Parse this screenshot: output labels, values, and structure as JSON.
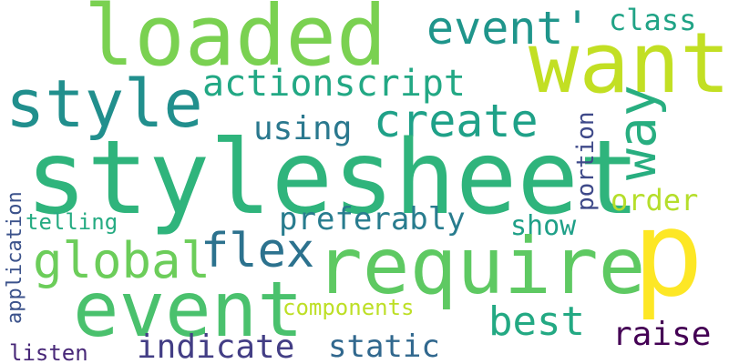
{
  "words": {
    "stylesheet": {
      "text": "stylesheet",
      "color": "#2fb47c"
    },
    "require": {
      "text": "require",
      "color": "#5ec962"
    },
    "event": {
      "text": "event",
      "color": "#4ac16d"
    },
    "loaded": {
      "text": "loaded",
      "color": "#7ad151"
    },
    "want": {
      "text": "want",
      "color": "#c2df23"
    },
    "p": {
      "text": "p",
      "color": "#fde725"
    },
    "style": {
      "text": "style",
      "color": "#218f8d"
    },
    "event_q": {
      "text": "event'",
      "color": "#1f958b"
    },
    "class": {
      "text": "class",
      "color": "#20a386"
    },
    "actionscript": {
      "text": "actionscript",
      "color": "#22a884"
    },
    "create": {
      "text": "create",
      "color": "#1fa188"
    },
    "way": {
      "text": "way",
      "color": "#28ae80"
    },
    "using": {
      "text": "using",
      "color": "#2a788e"
    },
    "portion": {
      "text": "portion",
      "color": "#3e4989"
    },
    "order": {
      "text": "order",
      "color": "#b5de2b"
    },
    "global": {
      "text": "global",
      "color": "#6ccd5a"
    },
    "flex": {
      "text": "flex",
      "color": "#2c728e"
    },
    "preferably": {
      "text": "preferably",
      "color": "#287c8e"
    },
    "show": {
      "text": "show",
      "color": "#1fa088"
    },
    "telling": {
      "text": "telling",
      "color": "#25ab82"
    },
    "application": {
      "text": "application",
      "color": "#3b528b"
    },
    "components": {
      "text": "components",
      "color": "#bddf26"
    },
    "best": {
      "text": "best",
      "color": "#23a983"
    },
    "raise": {
      "text": "raise",
      "color": "#440154"
    },
    "indicate": {
      "text": "indicate",
      "color": "#433e85"
    },
    "static": {
      "text": "static",
      "color": "#31688e"
    },
    "listen": {
      "text": "listen",
      "color": "#482878"
    }
  }
}
